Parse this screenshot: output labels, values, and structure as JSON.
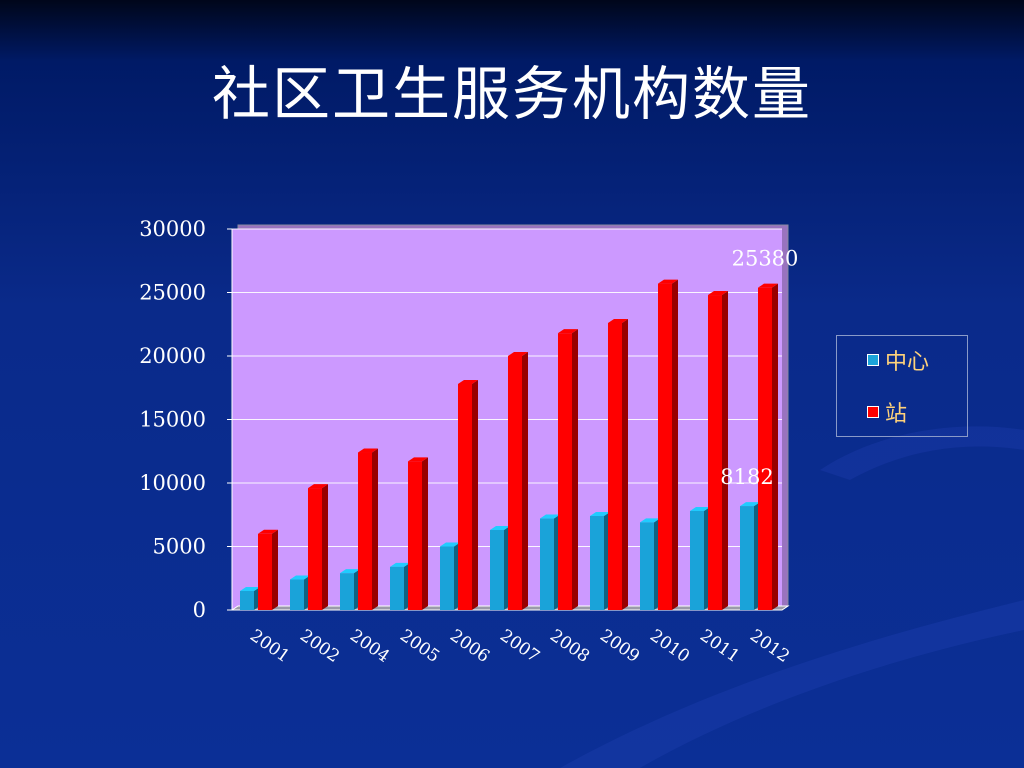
{
  "slide": {
    "title": "社区卫生服务机构数量"
  },
  "colors": {
    "plot_bg": "#cc99ff",
    "series_center": "#1aa3d9",
    "series_station": "#ff0000",
    "text": "#ffffff",
    "legend_text": "#ffd27a"
  },
  "chart_data": {
    "type": "bar",
    "categories": [
      "2001",
      "2002",
      "2004",
      "2005",
      "2006",
      "2007",
      "2008",
      "2009",
      "2010",
      "2011",
      "2012"
    ],
    "series": [
      {
        "name": "中心",
        "values": [
          1500,
          2400,
          2900,
          3400,
          5000,
          6300,
          7200,
          7400,
          6900,
          7800,
          8182
        ]
      },
      {
        "name": "站",
        "values": [
          6000,
          9600,
          12400,
          11700,
          17800,
          20000,
          21800,
          22600,
          25700,
          24800,
          25380
        ]
      }
    ],
    "ylim": [
      0,
      30000
    ],
    "yticks": [
      "0",
      "5000",
      "10000",
      "15000",
      "20000",
      "25000",
      "30000"
    ],
    "data_labels": [
      {
        "series": 1,
        "category": "2012",
        "text": "25380"
      },
      {
        "series": 0,
        "category": "2012",
        "text": "8182"
      }
    ],
    "grid": true,
    "legend_position": "right"
  }
}
